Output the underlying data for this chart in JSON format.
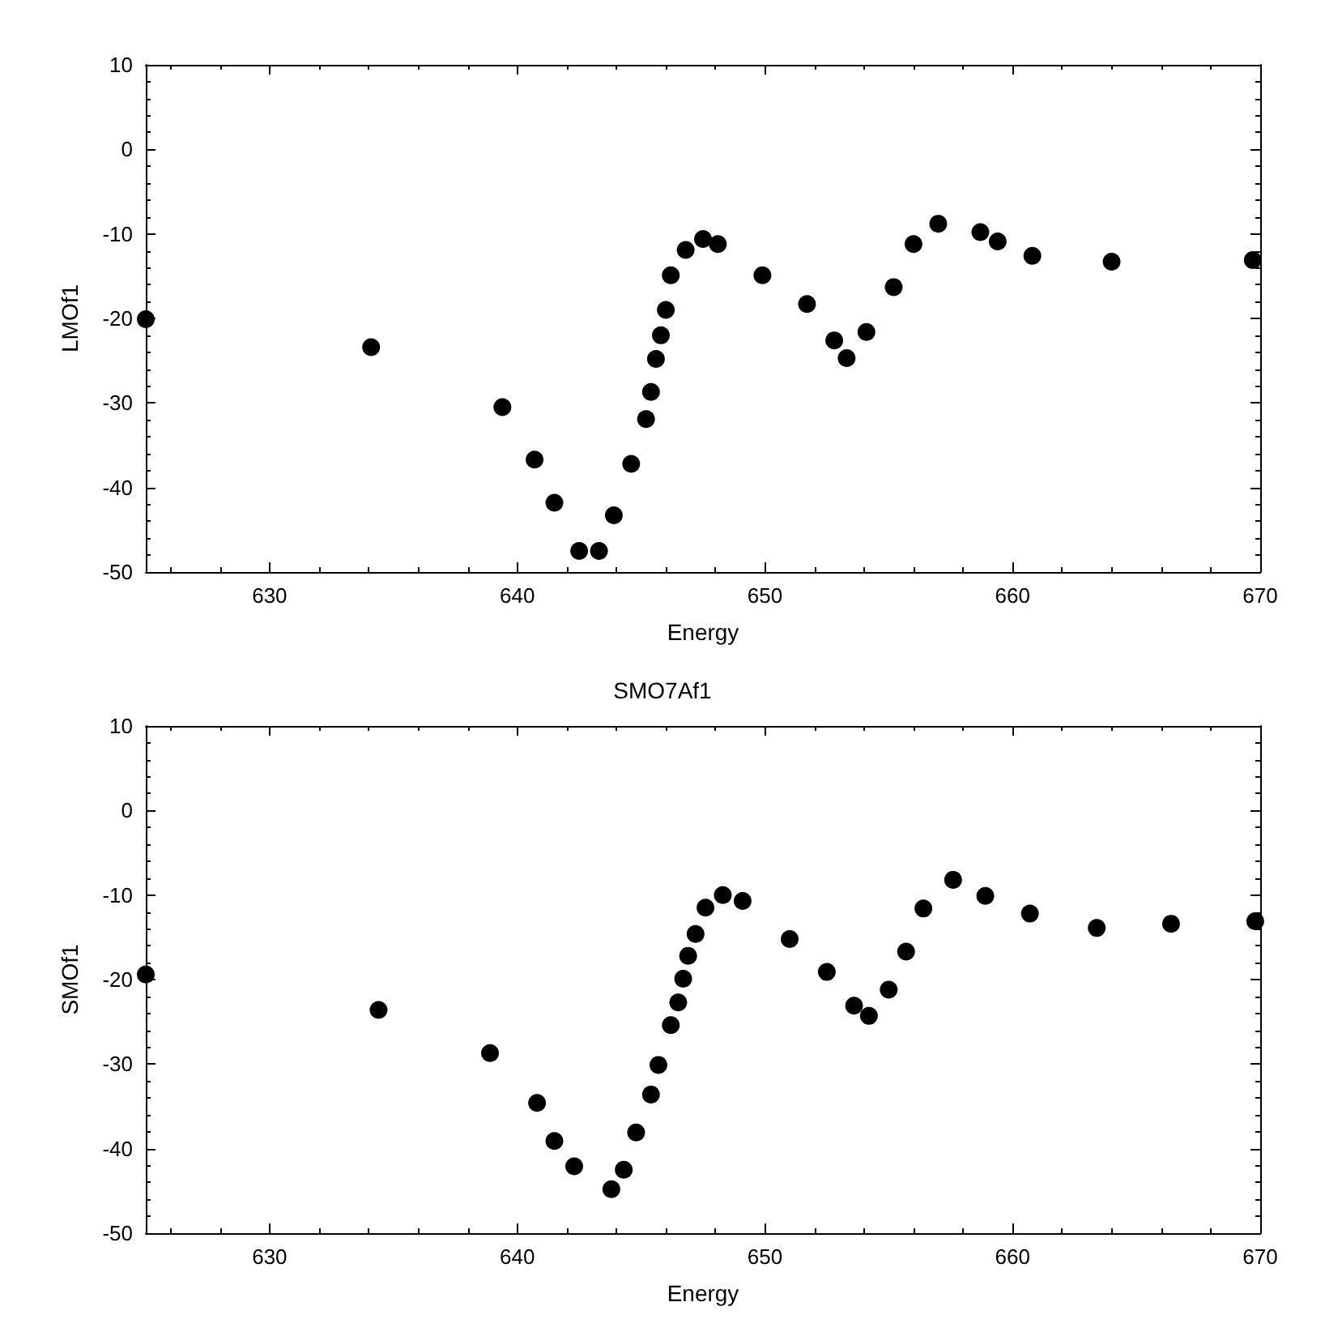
{
  "chart_data": [
    {
      "type": "scatter",
      "ylabel": "LMOf1",
      "xlabel": "Energy",
      "xlim": [
        625,
        670
      ],
      "xticks": [
        630,
        640,
        650,
        660,
        670
      ],
      "ylim": [
        -50,
        10
      ],
      "yticks": [
        -50,
        -40,
        -30,
        -20,
        -10,
        0,
        10
      ],
      "marker": "circle",
      "series": [
        {
          "color": "#000000",
          "x": [
            625,
            634.1,
            639.4,
            640.7,
            641.5,
            642.5,
            643.3,
            643.9,
            644.6,
            645.2,
            645.4,
            645.6,
            645.8,
            646.0,
            646.2,
            646.8,
            647.5,
            648.1,
            649.9,
            651.7,
            652.8,
            653.3,
            654.1,
            655.2,
            656.0,
            657.0,
            658.7,
            659.4,
            660.8,
            664.0,
            669.7
          ],
          "values": [
            -20.1,
            -23.4,
            -30.5,
            -36.7,
            -41.8,
            -47.5,
            -47.5,
            -43.3,
            -37.2,
            -31.9,
            -28.7,
            -24.8,
            -22,
            -19,
            -14.9,
            -11.9,
            -10.6,
            -11.2,
            -14.9,
            -18.3,
            -22.6,
            -24.7,
            -21.6,
            -16.3,
            -11.2,
            -8.8,
            -9.8,
            -10.9,
            -12.6,
            -13.3,
            -13.1
          ]
        }
      ]
    },
    {
      "type": "scatter",
      "title": "SMO7Af1",
      "ylabel": "SMOf1",
      "xlabel": "Energy",
      "xlim": [
        625,
        670
      ],
      "xticks": [
        630,
        640,
        650,
        660,
        670
      ],
      "ylim": [
        -50,
        10
      ],
      "yticks": [
        -50,
        -40,
        -30,
        -20,
        -10,
        0,
        10
      ],
      "marker": "circle",
      "series": [
        {
          "color": "#000000",
          "x": [
            625,
            634.4,
            638.9,
            640.8,
            641.5,
            642.3,
            643.8,
            644.3,
            644.8,
            645.4,
            645.7,
            646.2,
            646.5,
            646.7,
            646.9,
            647.2,
            647.6,
            648.3,
            649.1,
            651.0,
            652.5,
            653.6,
            654.2,
            655.0,
            655.7,
            656.4,
            657.6,
            658.9,
            660.7,
            663.4,
            666.4,
            669.8
          ],
          "values": [
            -19.4,
            -23.6,
            -28.7,
            -34.6,
            -39.1,
            -42.1,
            -44.8,
            -42.5,
            -38.1,
            -33.6,
            -30.1,
            -25.4,
            -22.7,
            -19.9,
            -17.2,
            -14.6,
            -11.5,
            -10,
            -10.7,
            -15.2,
            -19.1,
            -23.1,
            -24.3,
            -21.2,
            -16.7,
            -11.6,
            -8.2,
            -10.1,
            -12.2,
            -13.9,
            -13.4,
            -13.1
          ]
        }
      ]
    }
  ]
}
